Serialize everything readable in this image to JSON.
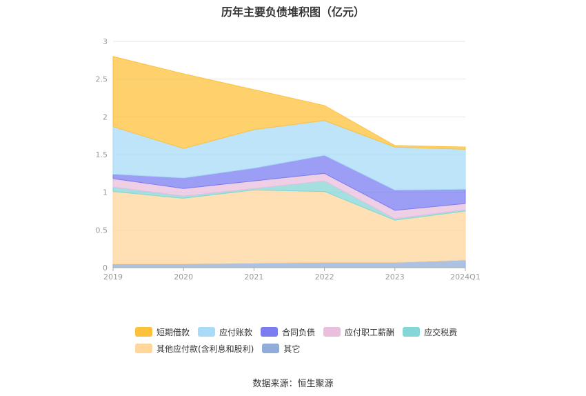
{
  "chart_data": {
    "type": "area",
    "stacked": true,
    "title": "历年主要负债堆积图（亿元）",
    "categories": [
      "2019",
      "2020",
      "2021",
      "2022",
      "2023",
      "2024Q1"
    ],
    "ylim": [
      0,
      3
    ],
    "yticks": [
      "0",
      "0.5",
      "1",
      "1.5",
      "2",
      "2.5",
      "3"
    ],
    "grid": true,
    "legend_position": "bottom",
    "series": [
      {
        "name": "其它",
        "color": "#91acd9",
        "values": [
          0.05,
          0.05,
          0.06,
          0.07,
          0.07,
          0.1
        ]
      },
      {
        "name": "其他应付款(含利息和股利)",
        "color": "#ffd69b",
        "values": [
          0.96,
          0.87,
          0.97,
          0.94,
          0.56,
          0.65
        ]
      },
      {
        "name": "应交税费",
        "color": "#85d6d6",
        "values": [
          0.06,
          0.03,
          0.02,
          0.14,
          0.02,
          0.02
        ]
      },
      {
        "name": "应付职工薪酬",
        "color": "#eabfde",
        "values": [
          0.11,
          0.1,
          0.1,
          0.1,
          0.11,
          0.08
        ]
      },
      {
        "name": "合同负债",
        "color": "#7b7cf0",
        "values": [
          0.06,
          0.14,
          0.17,
          0.24,
          0.27,
          0.19
        ]
      },
      {
        "name": "应付账款",
        "color": "#a8dbf8",
        "values": [
          0.63,
          0.39,
          0.51,
          0.46,
          0.57,
          0.53
        ]
      },
      {
        "name": "短期借款",
        "color": "#fec13c",
        "values": [
          0.93,
          0.99,
          0.53,
          0.2,
          0.02,
          0.03
        ]
      }
    ],
    "legend": [
      [
        "短期借款",
        "应付账款",
        "合同负债",
        "应付职工薪酬",
        "应交税费"
      ],
      [
        "其他应付款(含利息和股利)",
        "其它"
      ]
    ]
  },
  "source": "数据来源：恒生聚源"
}
